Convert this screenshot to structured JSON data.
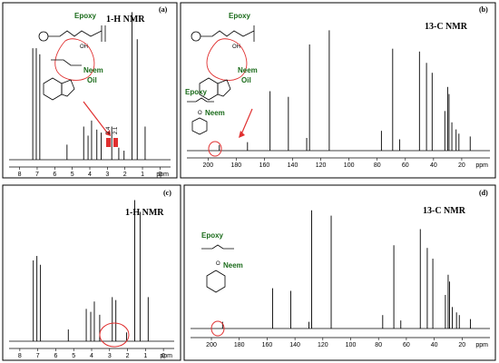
{
  "chart_data": [
    {
      "type": "line",
      "panel_label": "(a)",
      "title": "1-H NMR",
      "xlabel": "ppm",
      "xlim": [
        8.6,
        -0.6
      ],
      "x_ticks": [
        "8",
        "7",
        "6",
        "5",
        "4",
        "3",
        "2",
        "1",
        "0"
      ],
      "peaks": [
        {
          "x": 7.25,
          "y": 0.74
        },
        {
          "x": 7.05,
          "y": 0.74
        },
        {
          "x": 6.85,
          "y": 0.7
        },
        {
          "x": 5.3,
          "y": 0.1
        },
        {
          "x": 4.35,
          "y": 0.22
        },
        {
          "x": 4.1,
          "y": 0.16
        },
        {
          "x": 3.9,
          "y": 0.26
        },
        {
          "x": 3.6,
          "y": 0.2
        },
        {
          "x": 3.35,
          "y": 0.18
        },
        {
          "x": 2.75,
          "y": 0.22
        },
        {
          "x": 2.35,
          "y": 0.08
        },
        {
          "x": 2.05,
          "y": 0.06
        },
        {
          "x": 1.6,
          "y": 0.98
        },
        {
          "x": 1.3,
          "y": 0.8
        },
        {
          "x": 0.85,
          "y": 0.22
        }
      ],
      "annotations": {
        "integrals": [
          "2.4",
          "2.1"
        ],
        "labels": [
          "Epoxy",
          "OH",
          "Neem",
          "Oil"
        ]
      }
    },
    {
      "type": "line",
      "panel_label": "(b)",
      "title": "13-C NMR",
      "xlabel": "ppm",
      "xlim": [
        215,
        0
      ],
      "x_ticks": [
        "200",
        "180",
        "160",
        "140",
        "120",
        "100",
        "80",
        "60",
        "40",
        "20"
      ],
      "peaks": [
        {
          "x": 192,
          "y": 0.04
        },
        {
          "x": 172,
          "y": 0.06
        },
        {
          "x": 156,
          "y": 0.42
        },
        {
          "x": 143,
          "y": 0.38
        },
        {
          "x": 130,
          "y": 0.09
        },
        {
          "x": 128,
          "y": 0.75
        },
        {
          "x": 114,
          "y": 0.85
        },
        {
          "x": 77,
          "y": 0.14
        },
        {
          "x": 69,
          "y": 0.72
        },
        {
          "x": 64,
          "y": 0.08
        },
        {
          "x": 50,
          "y": 0.7
        },
        {
          "x": 45,
          "y": 0.62
        },
        {
          "x": 41,
          "y": 0.55
        },
        {
          "x": 32,
          "y": 0.28
        },
        {
          "x": 30,
          "y": 0.45
        },
        {
          "x": 29,
          "y": 0.4
        },
        {
          "x": 27,
          "y": 0.2
        },
        {
          "x": 24,
          "y": 0.15
        },
        {
          "x": 22,
          "y": 0.12
        },
        {
          "x": 14,
          "y": 0.1
        }
      ],
      "annotations": {
        "labels": [
          "Epoxy",
          "OH",
          "Neem",
          "Oil",
          "Epoxy",
          "O",
          "Neem"
        ]
      }
    },
    {
      "type": "line",
      "panel_label": "(c)",
      "title": "1-H NMR",
      "xlabel": "ppm",
      "xlim": [
        8.6,
        -0.6
      ],
      "x_ticks": [
        "8",
        "7",
        "6",
        "5",
        "4",
        "3",
        "2",
        "1",
        "0"
      ],
      "peaks": [
        {
          "x": 7.25,
          "y": 0.55
        },
        {
          "x": 7.05,
          "y": 0.58
        },
        {
          "x": 6.85,
          "y": 0.52
        },
        {
          "x": 5.3,
          "y": 0.08
        },
        {
          "x": 4.3,
          "y": 0.22
        },
        {
          "x": 4.05,
          "y": 0.2
        },
        {
          "x": 3.85,
          "y": 0.27
        },
        {
          "x": 3.55,
          "y": 0.18
        },
        {
          "x": 2.85,
          "y": 0.3
        },
        {
          "x": 2.65,
          "y": 0.28
        },
        {
          "x": 2.05,
          "y": 0.06
        },
        {
          "x": 1.6,
          "y": 0.96
        },
        {
          "x": 1.3,
          "y": 0.88
        },
        {
          "x": 0.85,
          "y": 0.3
        }
      ]
    },
    {
      "type": "line",
      "panel_label": "(d)",
      "title": "13-C NMR",
      "xlabel": "ppm",
      "xlim": [
        215,
        0
      ],
      "x_ticks": [
        "200",
        "180",
        "160",
        "140",
        "120",
        "100",
        "80",
        "60",
        "40",
        "20"
      ],
      "peaks": [
        {
          "x": 192,
          "y": 0.05
        },
        {
          "x": 156,
          "y": 0.3
        },
        {
          "x": 143,
          "y": 0.28
        },
        {
          "x": 130,
          "y": 0.05
        },
        {
          "x": 128,
          "y": 0.88
        },
        {
          "x": 114,
          "y": 0.84
        },
        {
          "x": 77,
          "y": 0.1
        },
        {
          "x": 69,
          "y": 0.62
        },
        {
          "x": 64,
          "y": 0.06
        },
        {
          "x": 50,
          "y": 0.74
        },
        {
          "x": 45,
          "y": 0.6
        },
        {
          "x": 41,
          "y": 0.52
        },
        {
          "x": 32,
          "y": 0.25
        },
        {
          "x": 30,
          "y": 0.4
        },
        {
          "x": 29,
          "y": 0.35
        },
        {
          "x": 27,
          "y": 0.16
        },
        {
          "x": 24,
          "y": 0.12
        },
        {
          "x": 22,
          "y": 0.1
        },
        {
          "x": 14,
          "y": 0.07
        }
      ],
      "annotations": {
        "labels": [
          "Epoxy",
          "O",
          "Neem"
        ]
      }
    }
  ]
}
